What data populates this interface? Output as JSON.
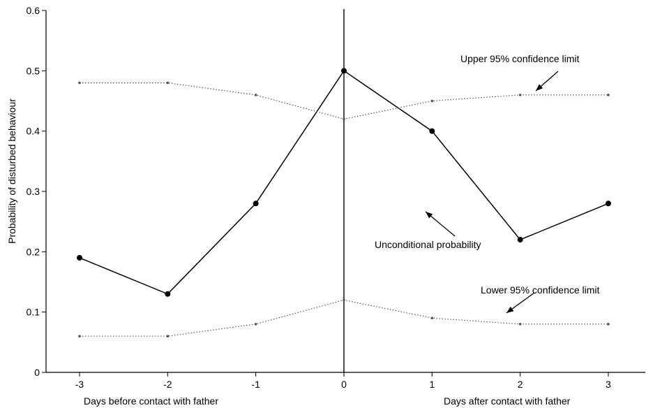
{
  "chart_data": {
    "type": "line",
    "title": "",
    "ylabel": "Probability of disturbed behaviour",
    "xlabel_left": "Days before contact with father",
    "xlabel_right": "Days after contact with father",
    "x": [
      -3,
      -2,
      -1,
      0,
      1,
      2,
      3
    ],
    "x_tick_labels": [
      "-3",
      "-2",
      "-1",
      "0",
      "1",
      "2",
      "3"
    ],
    "y_ticks": [
      0,
      0.1,
      0.2,
      0.3,
      0.4,
      0.5,
      0.6
    ],
    "y_tick_labels": [
      "0",
      "0.1",
      "0.2",
      "0.3",
      "0.4",
      "0.5",
      "0.6"
    ],
    "xlim": [
      -3.38,
      3.42
    ],
    "ylim": [
      0,
      0.6
    ],
    "grid": false,
    "series": [
      {
        "name": "Unconditional probability",
        "style": "solid",
        "values": [
          0.19,
          0.13,
          0.28,
          0.5,
          0.4,
          0.22,
          0.28
        ]
      },
      {
        "name": "Upper 95% confidence limit",
        "style": "dotted",
        "values": [
          0.48,
          0.48,
          0.46,
          0.42,
          0.45,
          0.46,
          0.46
        ]
      },
      {
        "name": "Lower 95% confidence limit",
        "style": "dotted",
        "values": [
          0.06,
          0.06,
          0.08,
          0.12,
          0.09,
          0.08,
          0.08
        ]
      }
    ],
    "annotations": {
      "upper": "Upper 95% confidence limit",
      "lower": "Lower 95% confidence limit",
      "unconditional": "Unconditional probability"
    },
    "vertical_line_at_x": 0,
    "colors": {
      "line": "#000000",
      "confidence": "#555555"
    }
  }
}
